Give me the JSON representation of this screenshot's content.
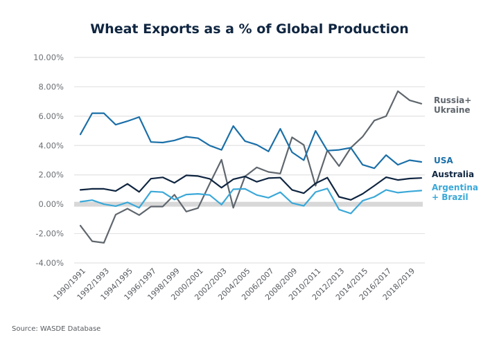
{
  "chart_data": {
    "type": "line",
    "title": "Wheat Exports as a % of Global Production",
    "xlabel": "",
    "ylabel": "",
    "source": "Source: WASDE Database",
    "ylim": [
      -4,
      10
    ],
    "yticks": [
      10,
      8,
      6,
      4,
      2,
      0,
      -2,
      -4
    ],
    "ytick_labels": [
      "10.00%",
      "8.00%",
      "6.00%",
      "4.00%",
      "2.00%",
      "0.00%",
      "-2.00%",
      "-4.00%"
    ],
    "grid": true,
    "legend_position": "right (inline labels at line ends)",
    "x": [
      "1990/1991",
      "1991/1992",
      "1992/1993",
      "1993/1994",
      "1994/1995",
      "1995/1996",
      "1996/1997",
      "1997/1998",
      "1998/1999",
      "1999/2000",
      "2000/2001",
      "2001/2002",
      "2002/2003",
      "2003/2004",
      "2004/2005",
      "2005/2006",
      "2006/2007",
      "2007/2008",
      "2008/2009",
      "2009/2010",
      "2010/2011",
      "2011/2012",
      "2012/2013",
      "2013/2014",
      "2014/2015",
      "2015/2016",
      "2016/2017",
      "2017/2018",
      "2018/2019",
      "2019/2020"
    ],
    "xtick_labels": [
      "1990/1991",
      "1992/1993",
      "1994/1995",
      "1996/1997",
      "1998/1999",
      "2000/2001",
      "2002/2003",
      "2004/2005",
      "2006/2007",
      "2008/2009",
      "2010/2011",
      "2012/2013",
      "2014/2015",
      "2016/2017",
      "2018/2019"
    ],
    "series": [
      {
        "name": "Russia+ Ukraine",
        "label_lines": [
          "Russia+",
          "Ukraine"
        ],
        "color": "#5f666d",
        "values": [
          -1.46,
          -2.52,
          -2.63,
          -0.71,
          -0.3,
          -0.74,
          -0.16,
          -0.16,
          0.65,
          -0.5,
          -0.26,
          1.4,
          3.03,
          -0.24,
          1.89,
          2.51,
          2.2,
          2.09,
          4.56,
          4.04,
          1.26,
          3.67,
          2.6,
          3.85,
          4.6,
          5.7,
          6.0,
          7.7,
          7.08,
          6.85
        ]
      },
      {
        "name": "USA",
        "label_lines": [
          "USA"
        ],
        "color": "#1a6fa8",
        "values": [
          4.76,
          6.2,
          6.2,
          5.42,
          5.66,
          5.94,
          4.24,
          4.2,
          4.35,
          4.6,
          4.5,
          4.0,
          3.7,
          5.33,
          4.3,
          4.05,
          3.6,
          5.14,
          3.54,
          3.0,
          5.0,
          3.65,
          3.7,
          3.85,
          2.69,
          2.45,
          3.35,
          2.69,
          3.0,
          2.88
        ]
      },
      {
        "name": "Australia",
        "label_lines": [
          "Australia"
        ],
        "color": "#0f2540",
        "values": [
          0.98,
          1.05,
          1.05,
          0.9,
          1.39,
          0.84,
          1.74,
          1.83,
          1.46,
          1.97,
          1.92,
          1.73,
          1.13,
          1.7,
          1.89,
          1.53,
          1.78,
          1.81,
          0.98,
          0.75,
          1.42,
          1.81,
          0.5,
          0.3,
          0.71,
          1.26,
          1.84,
          1.65,
          1.75,
          1.79
        ]
      },
      {
        "name": "Argentina + Brazil",
        "label_lines": [
          "Argentina",
          "+ Brazil"
        ],
        "color": "#3aa8d8",
        "values": [
          0.17,
          0.28,
          0.0,
          -0.13,
          0.13,
          -0.24,
          0.87,
          0.82,
          0.32,
          0.66,
          0.71,
          0.63,
          -0.03,
          1.02,
          1.05,
          0.63,
          0.44,
          0.82,
          0.08,
          -0.11,
          0.83,
          1.07,
          -0.36,
          -0.63,
          0.24,
          0.5,
          0.98,
          0.79,
          0.87,
          0.93
        ]
      }
    ]
  }
}
